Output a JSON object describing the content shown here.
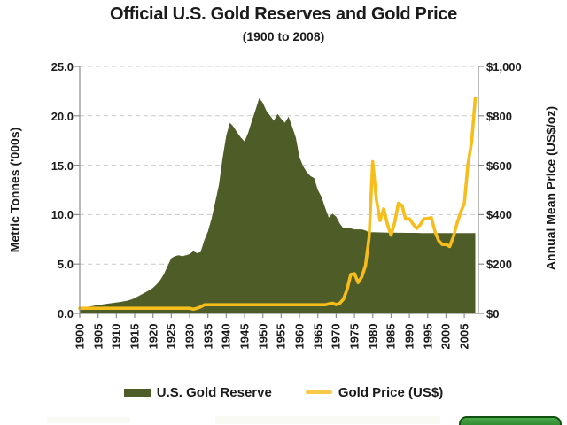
{
  "header": {
    "title": "Official U.S. Gold Reserves and Gold Price",
    "subtitle": "(1900 to 2008)"
  },
  "chart_data": {
    "type": "area+line combo",
    "title": "Official U.S. Gold Reserves and Gold Price",
    "subtitle": "(1900 to 2008)",
    "grid": {
      "horizontal": true,
      "style": "dashed"
    },
    "left_axis": {
      "label": "Metric Tonnes ('000s)",
      "min": 0,
      "max": 25,
      "tick_labels": [
        "0.0",
        "5.0",
        "10.0",
        "15.0",
        "20.0",
        "25.0"
      ],
      "tick_values": [
        0,
        5,
        10,
        15,
        20,
        25
      ]
    },
    "right_axis": {
      "label": "Annual Mean Price (US$/oz)",
      "min": 0,
      "max": 1000,
      "tick_labels": [
        "$0",
        "$200",
        "$400",
        "$600",
        "$800",
        "$1,000"
      ],
      "tick_values": [
        0,
        200,
        400,
        600,
        800,
        1000
      ]
    },
    "x_axis": {
      "start_year": 1900,
      "end_year": 2008,
      "step": 1,
      "tick_years": [
        1900,
        1905,
        1910,
        1915,
        1920,
        1925,
        1930,
        1935,
        1940,
        1945,
        1950,
        1955,
        1960,
        1965,
        1970,
        1975,
        1980,
        1985,
        1990,
        1995,
        2000,
        2005
      ]
    },
    "series": [
      {
        "name": "U.S. Gold Reserve",
        "type": "area",
        "axis": "left",
        "unit": "thousand metric tonnes",
        "values": [
          0.6,
          0.63,
          0.67,
          0.72,
          0.78,
          0.84,
          0.9,
          0.95,
          1.0,
          1.06,
          1.11,
          1.16,
          1.22,
          1.29,
          1.4,
          1.55,
          1.75,
          1.95,
          2.15,
          2.35,
          2.6,
          2.95,
          3.4,
          4.0,
          4.8,
          5.6,
          5.8,
          5.9,
          5.8,
          5.9,
          6.0,
          6.3,
          6.1,
          6.2,
          7.4,
          8.3,
          9.6,
          11.3,
          13.0,
          15.7,
          18.0,
          19.3,
          18.9,
          18.3,
          17.8,
          17.4,
          18.3,
          19.5,
          20.6,
          21.8,
          21.3,
          20.5,
          20.0,
          19.5,
          20.2,
          19.7,
          19.3,
          19.9,
          18.9,
          17.8,
          15.8,
          14.9,
          14.3,
          13.9,
          13.7,
          12.5,
          11.8,
          10.7,
          9.7,
          10.1,
          9.8,
          9.1,
          8.6,
          8.6,
          8.6,
          8.5,
          8.5,
          8.5,
          8.4,
          8.2,
          8.22,
          8.21,
          8.2,
          8.19,
          8.18,
          8.17,
          8.17,
          8.16,
          8.16,
          8.15,
          8.15,
          8.15,
          8.15,
          8.14,
          8.14,
          8.14,
          8.14,
          8.14,
          8.14,
          8.14,
          8.14,
          8.13,
          8.13,
          8.13,
          8.13,
          8.13,
          8.13,
          8.13,
          8.13
        ]
      },
      {
        "name": "Gold Price (US$)",
        "type": "line",
        "axis": "right",
        "unit": "US$/oz annual mean",
        "values": [
          20.67,
          20.67,
          20.67,
          20.67,
          20.67,
          20.67,
          20.67,
          20.67,
          20.67,
          20.67,
          20.67,
          20.67,
          20.67,
          20.67,
          20.67,
          20.67,
          20.67,
          20.67,
          20.67,
          20.67,
          20.67,
          20.67,
          20.67,
          20.67,
          20.67,
          20.67,
          20.67,
          20.67,
          20.67,
          20.67,
          20.67,
          17.06,
          20.67,
          26.33,
          34.69,
          35.0,
          35.0,
          35.0,
          35.0,
          35.0,
          35.0,
          35.0,
          35.0,
          35.0,
          35.0,
          35.0,
          35.0,
          35.0,
          35.0,
          35.0,
          35.0,
          35.0,
          35.0,
          35.0,
          35.0,
          35.0,
          35.0,
          35.0,
          35.0,
          35.0,
          35.0,
          35.0,
          35.0,
          35.0,
          35.0,
          35.0,
          35.0,
          35.0,
          38.7,
          41.09,
          35.94,
          40.8,
          58.16,
          97.32,
          158.1,
          160.87,
          124.74,
          147.71,
          193.22,
          306.68,
          614.61,
          459.61,
          375.91,
          423.83,
          360.48,
          317.26,
          367.66,
          446.46,
          436.94,
          381.44,
          383.51,
          362.11,
          343.82,
          359.77,
          384.0,
          384.17,
          387.77,
          331.02,
          294.24,
          278.98,
          279.11,
          271.04,
          309.73,
          363.38,
          409.72,
          444.74,
          603.46,
          695.39,
          871.96
        ]
      }
    ],
    "legend": {
      "position": "bottom",
      "items": [
        {
          "label": "U.S. Gold Reserve",
          "swatch": "area"
        },
        {
          "label": "Gold Price (US$)",
          "swatch": "line"
        }
      ]
    }
  },
  "colors": {
    "area": "#4E5C28",
    "line": "#F6BD1B",
    "legend_line": "#F8CA4A",
    "grid": "#c9c9c9",
    "axis": "#8c8c8c",
    "text": "#1b1b1b",
    "badge_fill_top": "#49a949",
    "badge_fill_bottom": "#1d6e1d",
    "badge_border": "#11510f"
  }
}
